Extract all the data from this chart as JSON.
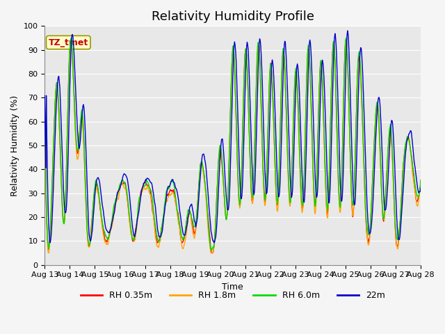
{
  "title": "Relativity Humidity Profile",
  "xlabel": "Time",
  "ylabel": "Relativity Humidity (%)",
  "ylim": [
    0,
    100
  ],
  "x_tick_labels": [
    "Aug 13",
    "Aug 14",
    "Aug 15",
    "Aug 16",
    "Aug 17",
    "Aug 18",
    "Aug 19",
    "Aug 20",
    "Aug 21",
    "Aug 22",
    "Aug 23",
    "Aug 24",
    "Aug 25",
    "Aug 26",
    "Aug 27",
    "Aug 28"
  ],
  "legend_labels": [
    "RH 0.35m",
    "RH 1.8m",
    "RH 6.0m",
    "22m"
  ],
  "line_colors": [
    "#ff0000",
    "#ffa500",
    "#00dd00",
    "#0000cc"
  ],
  "annotation_text": "TZ_tmet",
  "annotation_color": "#cc0000",
  "annotation_bg": "#ffffcc",
  "annotation_edge": "#999900",
  "plot_bg_color": "#e8e8e8",
  "fig_bg_color": "#f5f5f5",
  "grid_color": "#ffffff",
  "title_fontsize": 13,
  "label_fontsize": 9,
  "tick_fontsize": 8,
  "legend_fontsize": 9,
  "line_width": 1.0,
  "days": 15,
  "pts_per_day": 48,
  "key_times": [
    0.0,
    0.25,
    0.5,
    0.8,
    1.0,
    1.3,
    1.5,
    1.7,
    2.0,
    2.2,
    2.5,
    2.8,
    3.0,
    3.3,
    3.5,
    3.8,
    4.0,
    4.3,
    4.5,
    4.8,
    5.0,
    5.3,
    5.5,
    5.8,
    6.0,
    6.2,
    6.5,
    6.8,
    7.0,
    7.3,
    7.5,
    7.8,
    8.0,
    8.3,
    8.5,
    8.8,
    9.0,
    9.3,
    9.5,
    9.8,
    10.0,
    10.3,
    10.5,
    10.8,
    11.0,
    11.3,
    11.5,
    11.8,
    12.0,
    12.3,
    12.5,
    12.8,
    13.0,
    13.3,
    13.5,
    13.8,
    14.0,
    14.3,
    14.5,
    14.8,
    15.0
  ],
  "key_values": [
    68,
    20,
    75,
    20,
    90,
    46,
    62,
    13,
    32,
    25,
    10,
    25,
    32,
    28,
    10,
    28,
    33,
    25,
    9,
    25,
    32,
    22,
    9,
    22,
    14,
    40,
    20,
    14,
    50,
    25,
    90,
    25,
    90,
    27,
    91,
    27,
    82,
    26,
    89,
    26,
    81,
    25,
    90,
    25,
    83,
    24,
    93,
    24,
    93,
    22,
    84,
    22,
    18,
    65,
    20,
    57,
    12,
    40,
    53,
    30,
    35
  ]
}
